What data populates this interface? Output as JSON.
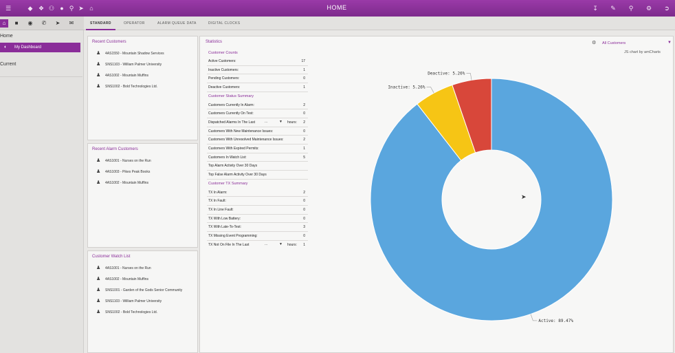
{
  "header": {
    "title": "HOME",
    "left_icons": [
      "menu-icon",
      "dashboard-icon",
      "settings-alt-icon",
      "users-icon",
      "user-icon",
      "location-icon",
      "megaphone-icon",
      "bank-icon"
    ],
    "right_icons": [
      "download-icon",
      "edit-icon",
      "search-icon",
      "gears-icon",
      "logout-icon"
    ]
  },
  "sidebar": {
    "icons": [
      "home-icon",
      "document-icon",
      "chat-icon",
      "phone-icon",
      "send-icon",
      "mail-icon"
    ],
    "home_label": "Home",
    "dashboard_label": "My Dashboard",
    "current_label": "Current"
  },
  "tabs": [
    {
      "label": "STANDARD"
    },
    {
      "label": "OPERATOR"
    },
    {
      "label": "ALARM QUEUE DATA"
    },
    {
      "label": "DIGITAL CLOCKS"
    }
  ],
  "recent_customers": {
    "title": "Recent Customers",
    "items": [
      "4AS1550 - Mountain Shadow Services",
      "SNS1103 - William Palmer University",
      "4AS1002 - Mountain Muffins",
      "SNS1002 - Bold Technologies Ltd."
    ]
  },
  "recent_alarm_customers": {
    "title": "Recent Alarm Customers",
    "items": [
      "4AS1001 - Nurses on the Run",
      "4AS1003 - Pikes Peak Books",
      "4AS1002 - Mountain Muffins"
    ]
  },
  "customer_watch_list": {
    "title": "Customer Watch List",
    "items": [
      "4AS1001 - Nurses on the Run",
      "4AS1002 - Mountain Muffins",
      "SNS1001 - Garden of the Gods Senior Community",
      "SNS1103 - William Palmer University",
      "SNS1002 - Bold Technologies Ltd."
    ]
  },
  "statistics": {
    "title": "Statistics",
    "customer_counts": {
      "heading": "Customer Counts",
      "rows": [
        {
          "label": "Active Customers:",
          "value": "17"
        },
        {
          "label": "Inactive Customers:",
          "value": "1"
        },
        {
          "label": "Pending Customers:",
          "value": "0"
        },
        {
          "label": "Deactive Customers:",
          "value": "1"
        }
      ]
    },
    "status_summary": {
      "heading": "Customer Status Summary",
      "rows": [
        {
          "label": "Customers Currently In Alarm:",
          "value": "2"
        },
        {
          "label": "Customers Currently On Test:",
          "value": "0"
        },
        {
          "label": "Dispatched Alarms In The Last",
          "select": "...",
          "suffix": "hours:",
          "value": "2"
        },
        {
          "label": "Customers With New Maintenance Issues:",
          "value": "0"
        },
        {
          "label": "Customers With Unresolved Maintenance Issues:",
          "value": "2"
        },
        {
          "label": "Customers With Expired Permits:",
          "value": "1"
        },
        {
          "label": "Customers In Watch List:",
          "value": "5"
        },
        {
          "label": "Top Alarm Activity Over 30 Days",
          "value": ""
        },
        {
          "label": "Top False Alarm Activity Over 30 Days",
          "value": ""
        }
      ]
    },
    "tx_summary": {
      "heading": "Customer TX Summary",
      "rows": [
        {
          "label": "TX In Alarm:",
          "value": "2"
        },
        {
          "label": "TX In Fault:",
          "value": "0"
        },
        {
          "label": "TX In Line Fault:",
          "value": "0"
        },
        {
          "label": "TX With Low Battery:",
          "value": "0"
        },
        {
          "label": "TX With Late-To-Test:",
          "value": "3"
        },
        {
          "label": "TX Missing Event Programming:",
          "value": "0"
        },
        {
          "label": "TX Not On File In The Last",
          "select": "...",
          "suffix": "hours:",
          "value": "1"
        }
      ]
    }
  },
  "customer_filter": {
    "value": "All Customers"
  },
  "chart_credit": "JS chart by amCharts",
  "chart_data": {
    "type": "pie",
    "donut": true,
    "title": "",
    "slices": [
      {
        "label": "Active: 89.47%",
        "value": 89.47,
        "color": "#5aa6de"
      },
      {
        "label": "Inactive: 5.26%",
        "value": 5.26,
        "color": "#f6c515"
      },
      {
        "label": "Deactive: 5.26%",
        "value": 5.26,
        "color": "#d8473a"
      }
    ]
  },
  "colors": {
    "brand": "#8a2d99",
    "panel": "#f6f6f5"
  }
}
